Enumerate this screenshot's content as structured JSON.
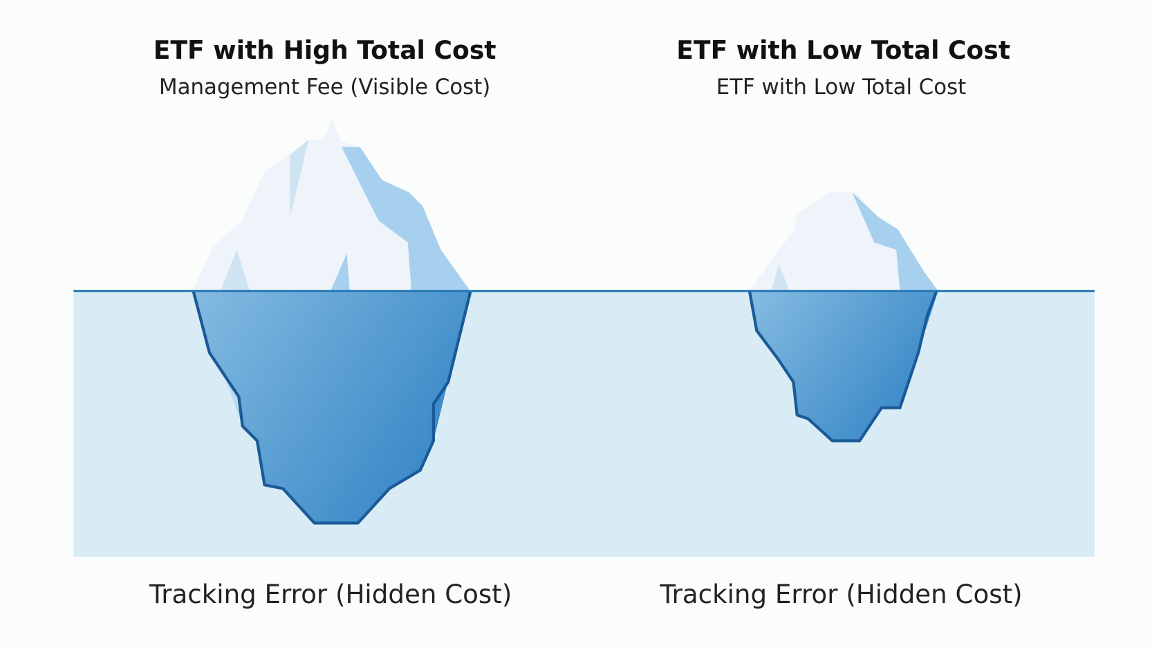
{
  "panels": [
    {
      "title": "ETF with High Total Cost",
      "subtitle": "Management Fee (Visible Cost)",
      "caption": "Tracking Error (Hidden Cost)"
    },
    {
      "title": "ETF with Low Total Cost",
      "subtitle": "ETF with Low Total Cost",
      "caption": "Tracking Error (Hidden Cost)"
    }
  ]
}
